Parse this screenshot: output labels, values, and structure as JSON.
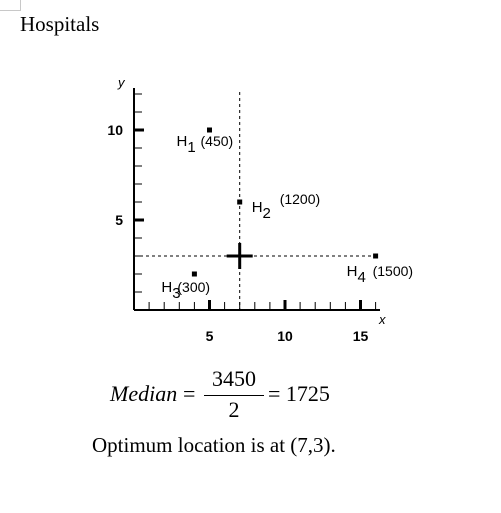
{
  "heading": "Hospitals",
  "chart_data": {
    "type": "scatter",
    "xlabel": "x",
    "ylabel": "y",
    "x_ticks": [
      5,
      10,
      15
    ],
    "y_ticks": [
      5,
      10
    ],
    "xlim": [
      0,
      16
    ],
    "ylim": [
      0,
      12
    ],
    "points": [
      {
        "x": 5,
        "y": 10,
        "name": "H",
        "sub": "1",
        "weight": "(450)"
      },
      {
        "x": 7,
        "y": 6,
        "name": "H",
        "sub": "2",
        "weight": "(1200)"
      },
      {
        "x": 4,
        "y": 2,
        "name": "H",
        "sub": "3",
        "weight": "(300)"
      },
      {
        "x": 16,
        "y": 3,
        "name": "H",
        "sub": "4",
        "weight": "(1500)"
      }
    ],
    "optimum": {
      "x": 7,
      "y": 3
    }
  },
  "equation": {
    "lhs": "Median",
    "numerator": "3450",
    "denominator": "2",
    "result": "1725"
  },
  "conclusion": "Optimum location is at (7,3)."
}
